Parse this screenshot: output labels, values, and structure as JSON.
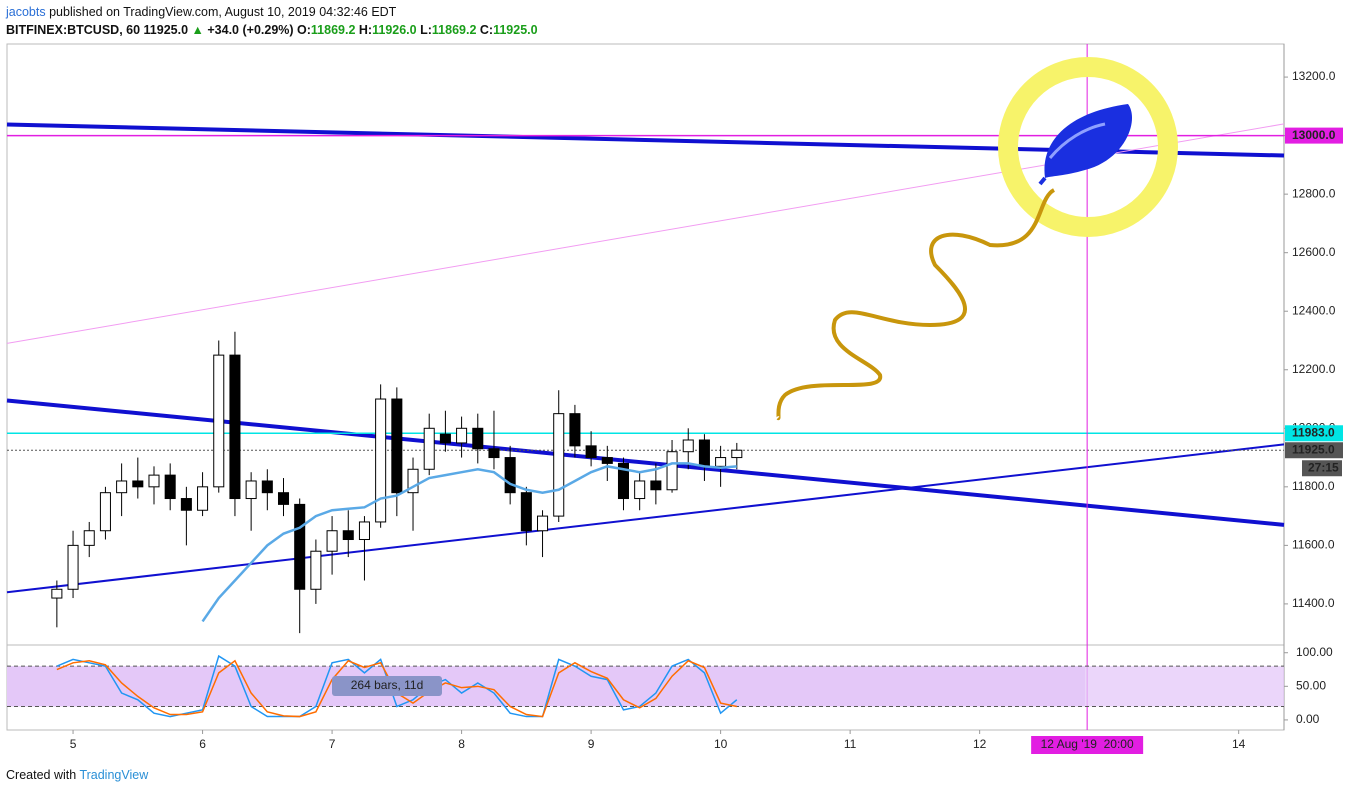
{
  "header": {
    "author": "jacobts",
    "published": "published on TradingView.com, August 10, 2019 04:32:46 EDT",
    "symbol": "BITFINEX:BTCUSD, 60",
    "last": "11925.0",
    "arrow": "▲",
    "change": "+34.0 (+0.29%)",
    "o_label": "O:",
    "o": "11869.2",
    "h_label": "H:",
    "h": "11926.0",
    "l_label": "L:",
    "l": "11869.2",
    "c_label": "C:",
    "c": "11925.0"
  },
  "chart_data": [
    {
      "type": "candlestick",
      "x": [
        4.875,
        5,
        5.125,
        5.25,
        5.375,
        5.5,
        5.625,
        5.75,
        5.875,
        6,
        6.125,
        6.25,
        6.375,
        6.5,
        6.625,
        6.75,
        6.875,
        7,
        7.125,
        7.25,
        7.375,
        7.5,
        7.625,
        7.75,
        7.875,
        8,
        8.125,
        8.25,
        8.375,
        8.5,
        8.625,
        8.75,
        8.875,
        9,
        9.125,
        9.25,
        9.375,
        9.5,
        9.625,
        9.75,
        9.875,
        10,
        10.125
      ],
      "open": [
        11420,
        11450,
        11600,
        11650,
        11780,
        11820,
        11800,
        11840,
        11760,
        11720,
        11800,
        12250,
        11760,
        11820,
        11780,
        11740,
        11450,
        11580,
        11650,
        11620,
        11680,
        12100,
        11780,
        11860,
        11980,
        11950,
        12000,
        11930,
        11900,
        11780,
        11650,
        11700,
        12050,
        11940,
        11900,
        11880,
        11760,
        11820,
        11790,
        11920,
        11960,
        11870,
        11900
      ],
      "high": [
        11480,
        11650,
        11680,
        11800,
        11880,
        11900,
        11870,
        11880,
        11800,
        11850,
        12300,
        12330,
        11850,
        11860,
        11830,
        11760,
        11620,
        11700,
        11720,
        11700,
        12150,
        12140,
        11900,
        12050,
        12060,
        12040,
        12050,
        12060,
        11940,
        11800,
        11720,
        12130,
        12080,
        11990,
        11940,
        11900,
        11850,
        11880,
        11960,
        12000,
        11980,
        11940,
        11950
      ],
      "low": [
        11320,
        11420,
        11560,
        11620,
        11700,
        11760,
        11740,
        11720,
        11600,
        11700,
        11780,
        11700,
        11650,
        11720,
        11700,
        11300,
        11400,
        11500,
        11560,
        11480,
        11660,
        11700,
        11650,
        11840,
        11920,
        11900,
        11880,
        11860,
        11740,
        11600,
        11560,
        11680,
        11900,
        11870,
        11820,
        11720,
        11720,
        11740,
        11780,
        11860,
        11820,
        11800,
        11860
      ],
      "close": [
        11450,
        11600,
        11650,
        11780,
        11820,
        11800,
        11840,
        11760,
        11720,
        11800,
        12250,
        11760,
        11820,
        11780,
        11740,
        11450,
        11580,
        11650,
        11620,
        11680,
        12100,
        11780,
        11860,
        12000,
        11950,
        12000,
        11930,
        11900,
        11780,
        11650,
        11700,
        12050,
        11940,
        11900,
        11880,
        11760,
        11820,
        11790,
        11920,
        11960,
        11870,
        11900,
        11925
      ],
      "up_color": "#ffffff",
      "down_color": "#000000",
      "wick_color": "#000000",
      "ma_values": [
        null,
        null,
        null,
        null,
        null,
        null,
        null,
        null,
        null,
        11340,
        11420,
        11480,
        11540,
        11600,
        11640,
        11660,
        11700,
        11720,
        11725,
        11730,
        11760,
        11770,
        11800,
        11830,
        11840,
        11850,
        11860,
        11850,
        11810,
        11790,
        11780,
        11790,
        11820,
        11850,
        11870,
        11860,
        11850,
        11860,
        11880,
        11880,
        11870,
        11865,
        11870
      ],
      "ma_color": "#5aa9e6",
      "xlim": [
        4.49,
        14.35
      ],
      "ylim": [
        11263,
        13313
      ],
      "xticks": [
        5,
        6,
        7,
        8,
        9,
        10,
        11,
        12,
        14
      ],
      "yticks": [
        {
          "value": 11400,
          "label": "11400.0"
        },
        {
          "value": 11600,
          "label": "11600.0"
        },
        {
          "value": 11800,
          "label": "11800.0"
        },
        {
          "value": 12000,
          "label": "12000.0"
        },
        {
          "value": 12200,
          "label": "12200.0"
        },
        {
          "value": 12400,
          "label": "12400.0"
        },
        {
          "value": 12600,
          "label": "12600.0"
        },
        {
          "value": 12800,
          "label": "12800.0"
        },
        {
          "value": 13000,
          "label": "13000.0"
        },
        {
          "value": 13200,
          "label": "13200.0"
        }
      ],
      "trendlines": [
        {
          "points": [
            [
              4.49,
              13038
            ],
            [
              14.35,
              12932
            ]
          ],
          "color": "#1010d0",
          "width": 4
        },
        {
          "points": [
            [
              4.49,
              12290
            ],
            [
              14.35,
              13040
            ]
          ],
          "color": "#f29cf2",
          "width": 1
        },
        {
          "points": [
            [
              4.49,
              12095
            ],
            [
              14.35,
              11670
            ]
          ],
          "color": "#1010d0",
          "width": 4
        },
        {
          "points": [
            [
              4.49,
              11440
            ],
            [
              14.35,
              11945
            ]
          ],
          "color": "#1010d0",
          "width": 2
        }
      ],
      "levels": [
        {
          "value": 13000,
          "label": "13000.0",
          "color": "#e21ee2",
          "style": "solid"
        },
        {
          "value": 11983,
          "label": "11983.0",
          "color": "#00e5e5",
          "style": "solid"
        },
        {
          "value": 11925,
          "label": "11925.0",
          "color": "#555555",
          "style": "dotted",
          "countdown": "27:15"
        }
      ],
      "marker": {
        "x": 12.83,
        "label": "12 Aug '19  20:00",
        "color": "#e21ee2"
      }
    },
    {
      "type": "line",
      "series": [
        {
          "color": "#2196f3",
          "values": [
            80,
            90,
            85,
            80,
            40,
            30,
            10,
            5,
            10,
            15,
            95,
            80,
            20,
            5,
            5,
            5,
            20,
            85,
            90,
            70,
            90,
            20,
            30,
            50,
            60,
            40,
            55,
            40,
            10,
            5,
            5,
            90,
            80,
            65,
            60,
            15,
            20,
            40,
            80,
            90,
            70,
            10,
            30
          ]
        },
        {
          "color": "#ff6d00",
          "values": [
            75,
            85,
            88,
            82,
            55,
            35,
            18,
            8,
            8,
            12,
            70,
            88,
            40,
            12,
            6,
            5,
            12,
            60,
            88,
            78,
            85,
            40,
            25,
            42,
            55,
            48,
            50,
            45,
            20,
            8,
            5,
            70,
            85,
            72,
            62,
            30,
            18,
            32,
            65,
            88,
            78,
            25,
            20
          ]
        }
      ],
      "ylim": [
        -15,
        110
      ],
      "yticks": [
        {
          "value": 100,
          "label": "100.00"
        },
        {
          "value": 50,
          "label": "50.00"
        },
        {
          "value": 0,
          "label": "0.00"
        }
      ],
      "band": [
        20,
        80
      ],
      "band_color": "#e4c8f8",
      "annotation": "264 bars, 11d"
    }
  ],
  "footer": {
    "created": "Created with",
    "brand": "TradingView"
  }
}
